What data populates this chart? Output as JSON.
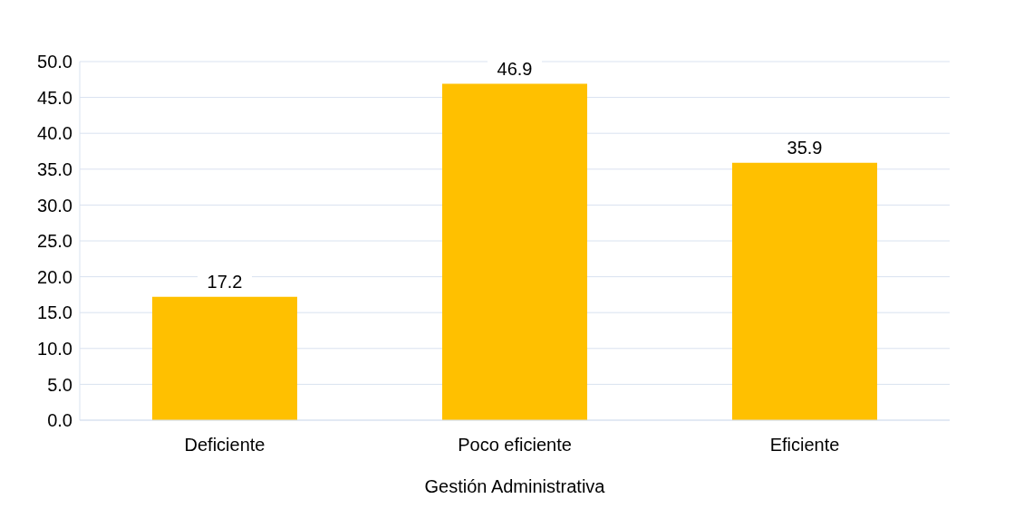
{
  "chart_data": {
    "type": "bar",
    "xlabel": "Gestión Administrativa",
    "categories": [
      "Deficiente",
      "Poco eficiente",
      "Eficiente"
    ],
    "values": [
      17.2,
      46.9,
      35.9
    ],
    "color": "#ffc000",
    "ylim": [
      0,
      50
    ],
    "yticks": [
      {
        "value": 0,
        "label": "0.0"
      },
      {
        "value": 5,
        "label": "5.0"
      },
      {
        "value": 10,
        "label": "10.0"
      },
      {
        "value": 15,
        "label": "15.0"
      },
      {
        "value": 20,
        "label": "20.0"
      },
      {
        "value": 25,
        "label": "25.0"
      },
      {
        "value": 30,
        "label": "30.0"
      },
      {
        "value": 35,
        "label": "35.0"
      },
      {
        "value": 40,
        "label": "40.0"
      },
      {
        "value": 45,
        "label": "45.0"
      },
      {
        "value": 50,
        "label": "50.0"
      }
    ],
    "grid": "y",
    "data_labels": true
  }
}
